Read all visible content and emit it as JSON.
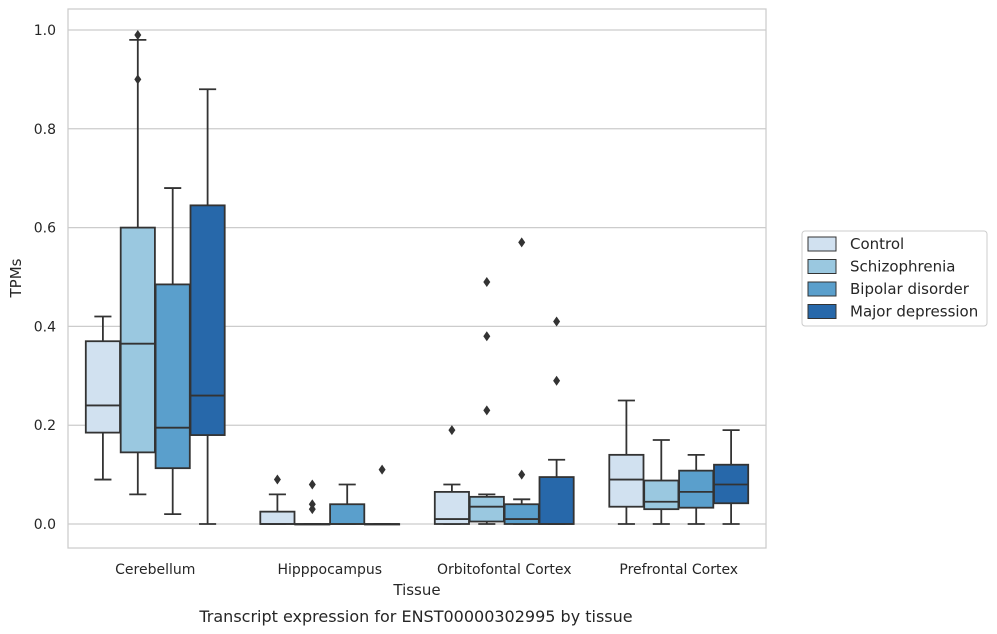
{
  "caption": "Transcript expression for ENST00000302995 by tissue",
  "chart_data": {
    "type": "box",
    "xlabel": "Tissue",
    "ylabel": "TPMs",
    "ylim": [
      -0.05,
      1.04
    ],
    "yticks": [
      "0.0",
      "0.2",
      "0.4",
      "0.6",
      "0.8",
      "1.0"
    ],
    "grid": "horizontal",
    "legend_position": "right",
    "categories": [
      "Cerebellum",
      "Hipppocampus",
      "Orbitofontal Cortex",
      "Prefrontal Cortex"
    ],
    "series": [
      {
        "name": "Control",
        "color": "#d1e1f0",
        "boxes": [
          {
            "whislo": 0.09,
            "q1": 0.185,
            "med": 0.24,
            "q3": 0.37,
            "whishi": 0.42,
            "fliers": []
          },
          {
            "whislo": 0.0,
            "q1": 0.0,
            "med": 0.0,
            "q3": 0.025,
            "whishi": 0.06,
            "fliers": [
              0.09
            ]
          },
          {
            "whislo": 0.0,
            "q1": 0.0,
            "med": 0.01,
            "q3": 0.065,
            "whishi": 0.08,
            "fliers": [
              0.19
            ]
          },
          {
            "whislo": 0.0,
            "q1": 0.035,
            "med": 0.09,
            "q3": 0.14,
            "whishi": 0.25,
            "fliers": []
          }
        ]
      },
      {
        "name": "Schizophrenia",
        "color": "#9ac8e0",
        "boxes": [
          {
            "whislo": 0.06,
            "q1": 0.145,
            "med": 0.365,
            "q3": 0.6,
            "whishi": 0.98,
            "fliers": [
              0.9,
              0.99
            ]
          },
          {
            "whislo": 0.0,
            "q1": 0.0,
            "med": 0.0,
            "q3": 0.0,
            "whishi": 0.0,
            "fliers": [
              0.03,
              0.04,
              0.08
            ]
          },
          {
            "whislo": 0.0,
            "q1": 0.005,
            "med": 0.035,
            "q3": 0.055,
            "whishi": 0.06,
            "fliers": [
              0.23,
              0.38,
              0.49
            ]
          },
          {
            "whislo": 0.0,
            "q1": 0.03,
            "med": 0.045,
            "q3": 0.088,
            "whishi": 0.17,
            "fliers": []
          }
        ]
      },
      {
        "name": "Bipolar disorder",
        "color": "#5a9fcc",
        "boxes": [
          {
            "whislo": 0.02,
            "q1": 0.113,
            "med": 0.195,
            "q3": 0.485,
            "whishi": 0.68,
            "fliers": []
          },
          {
            "whislo": 0.0,
            "q1": 0.0,
            "med": 0.0,
            "q3": 0.04,
            "whishi": 0.08,
            "fliers": []
          },
          {
            "whislo": 0.0,
            "q1": 0.0,
            "med": 0.01,
            "q3": 0.04,
            "whishi": 0.05,
            "fliers": [
              0.1,
              0.57
            ]
          },
          {
            "whislo": 0.0,
            "q1": 0.033,
            "med": 0.065,
            "q3": 0.108,
            "whishi": 0.14,
            "fliers": []
          }
        ]
      },
      {
        "name": "Major depression",
        "color": "#2768aa",
        "boxes": [
          {
            "whislo": 0.0,
            "q1": 0.18,
            "med": 0.26,
            "q3": 0.645,
            "whishi": 0.88,
            "fliers": []
          },
          {
            "whislo": 0.0,
            "q1": 0.0,
            "med": 0.0,
            "q3": 0.0,
            "whishi": 0.0,
            "fliers": [
              0.11
            ]
          },
          {
            "whislo": 0.0,
            "q1": 0.0,
            "med": 0.0,
            "q3": 0.095,
            "whishi": 0.13,
            "fliers": [
              0.29,
              0.41
            ]
          },
          {
            "whislo": 0.0,
            "q1": 0.042,
            "med": 0.08,
            "q3": 0.12,
            "whishi": 0.19,
            "fliers": []
          }
        ]
      }
    ]
  }
}
